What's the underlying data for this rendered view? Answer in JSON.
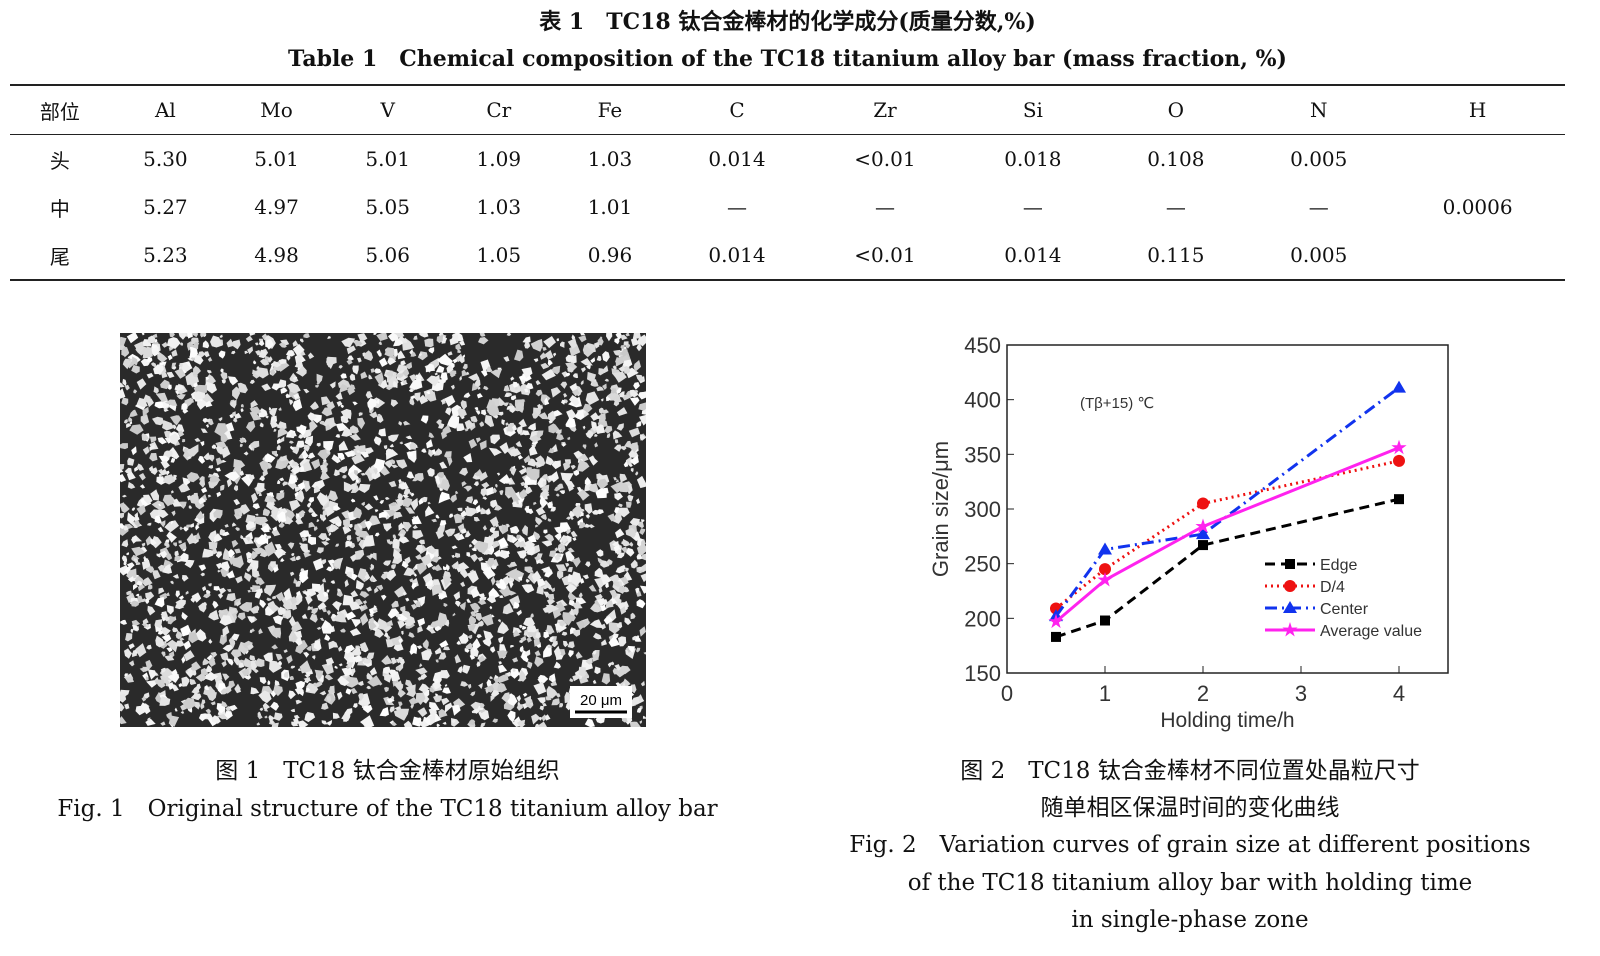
{
  "table": {
    "title_cn": "表 1　TC18 钛合金棒材的化学成分(质量分数,%)",
    "title_en": "Table 1　Chemical composition of the TC18 titanium alloy bar (mass fraction, %)",
    "headers": [
      "部位",
      "Al",
      "Mo",
      "V",
      "Cr",
      "Fe",
      "C",
      "Zr",
      "Si",
      "O",
      "N",
      "H"
    ],
    "rows": [
      [
        "头",
        "5.30",
        "5.01",
        "5.01",
        "1.09",
        "1.03",
        "0.014",
        "<0.01",
        "0.018",
        "0.108",
        "0.005"
      ],
      [
        "中",
        "5.27",
        "4.97",
        "5.05",
        "1.03",
        "1.01",
        "—",
        "—",
        "—",
        "—",
        "—"
      ],
      [
        "尾",
        "5.23",
        "4.98",
        "5.06",
        "1.05",
        "0.96",
        "0.014",
        "<0.01",
        "0.014",
        "0.115",
        "0.005"
      ]
    ],
    "h_value": "0.0006"
  },
  "fig1": {
    "scale_bar": "20 μm",
    "caption_cn": "图 1　TC18 钛合金棒材原始组织",
    "caption_en": "Fig. 1　Original structure of the TC18 titanium alloy bar"
  },
  "fig2": {
    "caption_cn_1": "图 2　TC18 钛合金棒材不同位置处晶粒尺寸",
    "caption_cn_2": "随单相区保温时间的变化曲线",
    "caption_en_1": "Fig. 2　Variation curves of grain size at different positions",
    "caption_en_2": "of the TC18 titanium alloy bar with holding time",
    "caption_en_3": "in single-phase zone"
  },
  "chart_data": {
    "type": "line",
    "xlabel": "Holding time/h",
    "ylabel": "Grain size/μm",
    "annotation": "(Tβ+15) ℃",
    "xlim": [
      0,
      4.5
    ],
    "ylim": [
      150,
      450
    ],
    "xticks": [
      "0",
      "1",
      "2",
      "3",
      "4"
    ],
    "yticks": [
      "150",
      "200",
      "250",
      "300",
      "350",
      "400",
      "450"
    ],
    "legend": "right",
    "x": [
      0.5,
      1,
      2,
      4
    ],
    "series": [
      {
        "name": "Edge",
        "values": [
          183,
          198,
          267,
          309
        ],
        "color": "#000000",
        "dash": "10,6",
        "marker": "square"
      },
      {
        "name": "D/4",
        "values": [
          209,
          245,
          305,
          344
        ],
        "color": "#ee1111",
        "dash": "2,4",
        "marker": "circle"
      },
      {
        "name": "Center",
        "values": [
          202,
          263,
          277,
          411
        ],
        "color": "#1133ee",
        "dash": "12,5,2,5",
        "marker": "triangle"
      },
      {
        "name": "Average value",
        "values": [
          197,
          235,
          284,
          356
        ],
        "color": "#ff22ee",
        "dash": "",
        "marker": "star"
      }
    ]
  }
}
